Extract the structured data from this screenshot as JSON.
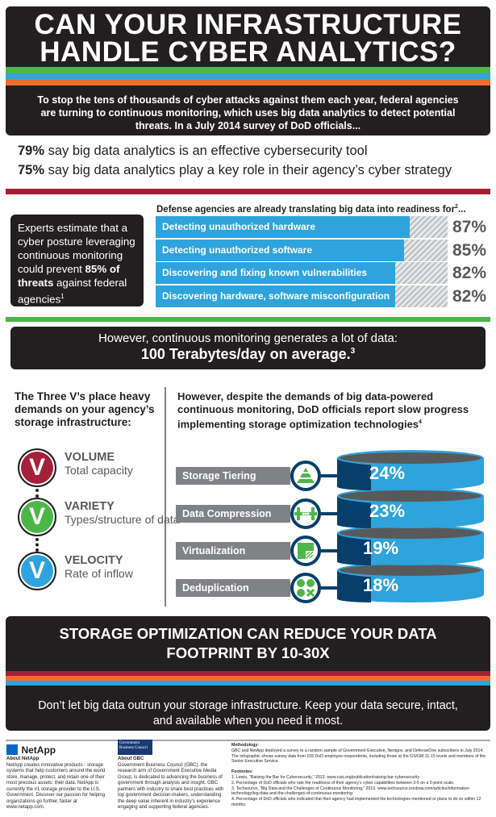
{
  "header": {
    "title_line1": "CAN YOUR INFRASTRUCTURE",
    "title_line2": "HANDLE CYBER ANALYTICS?",
    "intro": "To stop the tens of thousands of cyber attacks against them each year, federal agencies are turning to continuous monitoring, which uses big data analytics to detect potential threats. In a July 2014 survey of DoD officials..."
  },
  "stats": [
    {
      "value": "79%",
      "text": " say big data analytics is an effective cybersecurity tool"
    },
    {
      "value": "75%",
      "text": " say big data analytics play a key role in their agency’s cyber strategy"
    }
  ],
  "expert": {
    "pre": "Experts estimate that a cyber posture leveraging continuous monitoring could prevent ",
    "bold": "85% of threats",
    "post": " against federal agencies",
    "sup": "1"
  },
  "readiness": {
    "title": "Defense agencies are already translating big data into readiness for",
    "sup": "2",
    "ellipsis": "...",
    "items": [
      {
        "label": "Detecting unauthorized hardware",
        "value": 87,
        "display": "87%"
      },
      {
        "label": "Detecting unauthorized software",
        "value": 85,
        "display": "85%"
      },
      {
        "label": "Discovering and fixing known vulnerabilities",
        "value": 82,
        "display": "82%"
      },
      {
        "label": "Discovering hardware, software misconfiguration",
        "value": 82,
        "display": "82%"
      }
    ]
  },
  "terabytes": {
    "line1": "However, continuous monitoring generates a lot of data:",
    "bold": "100 Terabytes/day",
    "rest": " on average.",
    "sup": "3"
  },
  "three_vs": {
    "intro": "The Three V’s place heavy demands on your agency’s storage infrastructure:",
    "letter": "V",
    "items": [
      {
        "name": "VOLUME",
        "desc": "Total capacity",
        "color": "#a61f38"
      },
      {
        "name": "VARIETY",
        "desc": "Types/structure of data",
        "color": "#4cb748"
      },
      {
        "name": "VELOCITY",
        "desc": "Rate of inflow",
        "color": "#2fa3dc"
      }
    ]
  },
  "storage": {
    "title": "However, despite the demands of big data-powered continuous monitoring, DoD officials report slow progress implementing storage optimization technologies",
    "sup": "4",
    "items": [
      {
        "label": "Storage Tiering",
        "value": 24,
        "display": "24%",
        "icon": "pyramid-icon"
      },
      {
        "label": "Data Compression",
        "value": 23,
        "display": "23%",
        "icon": "compression-icon"
      },
      {
        "label": "Virtualization",
        "value": 19,
        "display": "19%",
        "icon": "virtualization-icon"
      },
      {
        "label": "Deduplication",
        "value": 18,
        "display": "18%",
        "icon": "deduplication-icon"
      }
    ]
  },
  "bottom": {
    "title": "STORAGE OPTIMIZATION CAN REDUCE YOUR DATA FOOTPRINT BY 10-30X",
    "text": "Don’t let big data outrun your storage infrastructure. Keep your data secure, intact, and available when you need it most."
  },
  "footer": {
    "netapp_logo": "NetApp",
    "netapp_heading": "About NetApp",
    "netapp_text": "NetApp creates innovative products - storage systems that help customers around the world store, manage, protect, and retain one of their most precious assets: their data. NetApp is currently the #1 storage provider to the U.S. Government. Discover our passion for helping organizations go further, faster at www.netapp.com.",
    "gbc_logo": "Government Business Council",
    "gbc_heading": "About GBC",
    "gbc_text": "Government Business Council (GBC), the research arm of Government Executive Media Group, is dedicated to advancing the business of government through analysis and insight. GBC partners with industry to share best practices with top government decision-makers, understanding the deep value inherent in industry’s experience engaging and supporting federal agencies.",
    "methodology_heading": "Methodology:",
    "methodology_text": "GBC and NetApp deployed a survey to a random sample of Government Executive, Nextgov, and DefenseOne subscribers in July 2014. The infographic shows survey data from 155 DoD employee respondents, including those at the GS/GM 11-15 levels and members of the Senior Executive Service.",
    "footnotes_heading": "Footnotes:",
    "footnotes": [
      "1. Lewis, “Raising the Bar for Cybersecurity,” 2013. www.csis.org/publication/raising-bar-cybersecurity",
      "2. Percentage of DoD officials who rate the readiness of their agency’s cyber capabilities between 3-5 on a 5-point scale.",
      "3. Techsource, “Big Data and the Challenges of Continuous Monitoring,” 2013. www.techsource.ironbow.com/articles/information-technology/big-data-and-the-challenges-of-continuous-monitoring",
      "4. Percentage of DoD officials who indicated that their agency had implemented the technologies mentioned or plans to do so within 12 months."
    ]
  },
  "colors": {
    "dark": "#231f20",
    "red": "#a61f38",
    "green": "#4cb748",
    "blue": "#2fa3dc",
    "orange": "#f36c2b",
    "navy": "#063f6b",
    "gray": "#808285"
  }
}
